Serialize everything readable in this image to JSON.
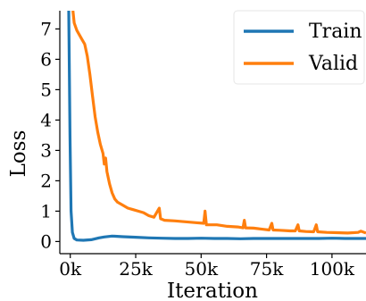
{
  "chart_data": {
    "type": "line",
    "title": "",
    "xlabel": "Iteration",
    "ylabel": "Loss",
    "xlim": [
      -4000,
      113000
    ],
    "ylim": [
      -0.4,
      7.6
    ],
    "grid": false,
    "legend_position": "top-right",
    "x_ticks": [
      {
        "value": 0,
        "label": "0k"
      },
      {
        "value": 25000,
        "label": "25k"
      },
      {
        "value": 50000,
        "label": "50k"
      },
      {
        "value": 75000,
        "label": "75k"
      },
      {
        "value": 100000,
        "label": "100k"
      }
    ],
    "y_ticks": [
      {
        "value": 0,
        "label": "0"
      },
      {
        "value": 1,
        "label": "1"
      },
      {
        "value": 2,
        "label": "2"
      },
      {
        "value": 3,
        "label": "3"
      },
      {
        "value": 4,
        "label": "4"
      },
      {
        "value": 5,
        "label": "5"
      },
      {
        "value": 6,
        "label": "6"
      },
      {
        "value": 7,
        "label": "7"
      }
    ],
    "series": [
      {
        "name": "Train",
        "color": "#1f77b4",
        "points": [
          [
            -600,
            7.6
          ],
          [
            -100,
            3.5
          ],
          [
            300,
            1.0
          ],
          [
            800,
            0.3
          ],
          [
            1500,
            0.1
          ],
          [
            2500,
            0.05
          ],
          [
            5000,
            0.04
          ],
          [
            8000,
            0.06
          ],
          [
            11000,
            0.12
          ],
          [
            13000,
            0.15
          ],
          [
            16000,
            0.18
          ],
          [
            20000,
            0.16
          ],
          [
            25000,
            0.14
          ],
          [
            30000,
            0.12
          ],
          [
            35000,
            0.11
          ],
          [
            40000,
            0.1
          ],
          [
            45000,
            0.1
          ],
          [
            50000,
            0.11
          ],
          [
            55000,
            0.1
          ],
          [
            60000,
            0.1
          ],
          [
            65000,
            0.09
          ],
          [
            70000,
            0.1
          ],
          [
            75000,
            0.1
          ],
          [
            80000,
            0.1
          ],
          [
            85000,
            0.1
          ],
          [
            90000,
            0.1
          ],
          [
            95000,
            0.1
          ],
          [
            100000,
            0.11
          ],
          [
            105000,
            0.1
          ],
          [
            110000,
            0.1
          ],
          [
            113000,
            0.1
          ]
        ]
      },
      {
        "name": "Valid",
        "color": "#ff7f0e",
        "points": [
          [
            1000,
            7.6
          ],
          [
            1500,
            7.2
          ],
          [
            2500,
            6.95
          ],
          [
            3500,
            6.8
          ],
          [
            4500,
            6.65
          ],
          [
            5500,
            6.5
          ],
          [
            6500,
            6.1
          ],
          [
            7500,
            5.5
          ],
          [
            8500,
            4.8
          ],
          [
            9500,
            4.1
          ],
          [
            10500,
            3.6
          ],
          [
            11500,
            3.2
          ],
          [
            12500,
            2.9
          ],
          [
            13000,
            2.55
          ],
          [
            13500,
            2.75
          ],
          [
            14000,
            2.3
          ],
          [
            15000,
            1.9
          ],
          [
            16000,
            1.6
          ],
          [
            17000,
            1.4
          ],
          [
            18000,
            1.3
          ],
          [
            20000,
            1.2
          ],
          [
            22000,
            1.1
          ],
          [
            24000,
            1.05
          ],
          [
            26000,
            1.0
          ],
          [
            28000,
            0.95
          ],
          [
            30000,
            0.85
          ],
          [
            32000,
            0.8
          ],
          [
            34000,
            1.1
          ],
          [
            34500,
            0.75
          ],
          [
            36000,
            0.7
          ],
          [
            40000,
            0.68
          ],
          [
            44000,
            0.65
          ],
          [
            48000,
            0.62
          ],
          [
            51000,
            0.6
          ],
          [
            51500,
            1.0
          ],
          [
            52000,
            0.55
          ],
          [
            56000,
            0.55
          ],
          [
            60000,
            0.5
          ],
          [
            64000,
            0.48
          ],
          [
            66000,
            0.45
          ],
          [
            66500,
            0.7
          ],
          [
            67000,
            0.45
          ],
          [
            70000,
            0.44
          ],
          [
            74000,
            0.4
          ],
          [
            76000,
            0.38
          ],
          [
            77000,
            0.6
          ],
          [
            77500,
            0.38
          ],
          [
            80000,
            0.37
          ],
          [
            84000,
            0.35
          ],
          [
            86000,
            0.35
          ],
          [
            87000,
            0.55
          ],
          [
            87500,
            0.35
          ],
          [
            90000,
            0.33
          ],
          [
            93000,
            0.32
          ],
          [
            94000,
            0.55
          ],
          [
            94500,
            0.32
          ],
          [
            98000,
            0.3
          ],
          [
            102000,
            0.29
          ],
          [
            106000,
            0.28
          ],
          [
            110000,
            0.3
          ],
          [
            111000,
            0.34
          ],
          [
            113000,
            0.28
          ]
        ]
      }
    ]
  }
}
